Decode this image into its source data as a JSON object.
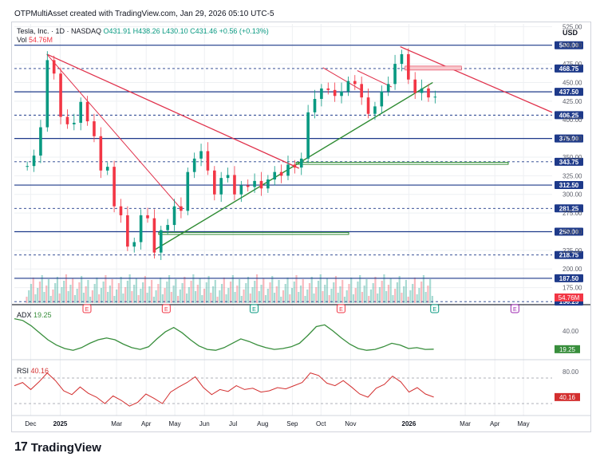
{
  "caption": "OTPMultiAsset created with TradingView.com, Jan 29, 2026 05:10 UTC-5",
  "header": {
    "symbol": "Tesla, Inc. · 1D · NASDAQ",
    "ohlc": "O431.91 H438.26 L430.10 C431.46 +0.56 (+0.13%)",
    "vol_label": "Vol",
    "vol_value": "54.76M",
    "currency": "USD"
  },
  "logo": {
    "mark": "17",
    "word": "TradingView"
  },
  "colors": {
    "up": "#089981",
    "down": "#f23645",
    "hline": "#1e3a8a",
    "trendRed": "#e0314b",
    "trendGreen": "#2e8b32",
    "adx": "#388e3c",
    "rsi": "#d32f2f",
    "grid": "#eef0f3"
  },
  "chart_data": [
    {
      "type": "candlestick",
      "title": "Tesla, Inc. · 1D · NASDAQ",
      "ylim": [
        150,
        520
      ],
      "x_ticks": [
        "Dec",
        "2025",
        "Mar",
        "Apr",
        "May",
        "Jun",
        "Jul",
        "Aug",
        "Sep",
        "Oct",
        "Nov",
        "2026",
        "Mar",
        "Apr",
        "May"
      ],
      "y_ticks": [
        525,
        500,
        475,
        450,
        425,
        400,
        375,
        350,
        325,
        300,
        275,
        250,
        225,
        200,
        175,
        150
      ],
      "price_levels": [
        500.0,
        468.75,
        437.5,
        406.25,
        375.0,
        343.75,
        312.5,
        281.25,
        250.0,
        218.75,
        187.5,
        156.25
      ],
      "last_price_label": "54.76M",
      "series": [
        {
          "name": "Price",
          "points": [
            {
              "d": "2024-11-26",
              "v": 338
            },
            {
              "d": "2024-12-03",
              "v": 352
            },
            {
              "d": "2024-12-10",
              "v": 390
            },
            {
              "d": "2024-12-17",
              "v": 480
            },
            {
              "d": "2024-12-24",
              "v": 462
            },
            {
              "d": "2024-12-31",
              "v": 404
            },
            {
              "d": "2025-01-07",
              "v": 394
            },
            {
              "d": "2025-01-14",
              "v": 396
            },
            {
              "d": "2025-01-21",
              "v": 424
            },
            {
              "d": "2025-01-28",
              "v": 398
            },
            {
              "d": "2025-02-04",
              "v": 378
            },
            {
              "d": "2025-02-11",
              "v": 332
            },
            {
              "d": "2025-02-18",
              "v": 337
            },
            {
              "d": "2025-02-25",
              "v": 284
            },
            {
              "d": "2025-03-04",
              "v": 272
            },
            {
              "d": "2025-03-11",
              "v": 230
            },
            {
              "d": "2025-03-18",
              "v": 236
            },
            {
              "d": "2025-03-25",
              "v": 272
            },
            {
              "d": "2025-04-01",
              "v": 268
            },
            {
              "d": "2025-04-08",
              "v": 222
            },
            {
              "d": "2025-04-15",
              "v": 252
            },
            {
              "d": "2025-04-22",
              "v": 259
            },
            {
              "d": "2025-04-29",
              "v": 284
            },
            {
              "d": "2025-05-06",
              "v": 278
            },
            {
              "d": "2025-05-13",
              "v": 330
            },
            {
              "d": "2025-05-20",
              "v": 348
            },
            {
              "d": "2025-05-27",
              "v": 358
            },
            {
              "d": "2025-06-03",
              "v": 332
            },
            {
              "d": "2025-06-10",
              "v": 300
            },
            {
              "d": "2025-06-17",
              "v": 322
            },
            {
              "d": "2025-06-24",
              "v": 326
            },
            {
              "d": "2025-07-01",
              "v": 300
            },
            {
              "d": "2025-07-08",
              "v": 312
            },
            {
              "d": "2025-07-15",
              "v": 310
            },
            {
              "d": "2025-07-22",
              "v": 318
            },
            {
              "d": "2025-07-29",
              "v": 308
            },
            {
              "d": "2025-08-05",
              "v": 320
            },
            {
              "d": "2025-08-12",
              "v": 330
            },
            {
              "d": "2025-08-19",
              "v": 325
            },
            {
              "d": "2025-08-26",
              "v": 340
            },
            {
              "d": "2025-09-02",
              "v": 336
            },
            {
              "d": "2025-09-09",
              "v": 348
            },
            {
              "d": "2025-09-16",
              "v": 410
            },
            {
              "d": "2025-09-23",
              "v": 428
            },
            {
              "d": "2025-09-30",
              "v": 442
            },
            {
              "d": "2025-10-07",
              "v": 440
            },
            {
              "d": "2025-10-14",
              "v": 432
            },
            {
              "d": "2025-10-21",
              "v": 438
            },
            {
              "d": "2025-10-28",
              "v": 452
            },
            {
              "d": "2025-11-04",
              "v": 448
            },
            {
              "d": "2025-11-11",
              "v": 430
            },
            {
              "d": "2025-11-18",
              "v": 408
            },
            {
              "d": "2025-11-25",
              "v": 418
            },
            {
              "d": "2025-12-02",
              "v": 438
            },
            {
              "d": "2025-12-09",
              "v": 448
            },
            {
              "d": "2025-12-16",
              "v": 475
            },
            {
              "d": "2025-12-23",
              "v": 488
            },
            {
              "d": "2025-12-30",
              "v": 454
            },
            {
              "d": "2026-01-06",
              "v": 436
            },
            {
              "d": "2026-01-13",
              "v": 442
            },
            {
              "d": "2026-01-20",
              "v": 430
            },
            {
              "d": "2026-01-27",
              "v": 431
            }
          ]
        }
      ]
    },
    {
      "type": "line",
      "title": "ADX",
      "ylim": [
        10,
        60
      ],
      "y_ticks": [
        40.0
      ],
      "value_label": "19.25",
      "series": [
        {
          "name": "ADX",
          "values": [
            54,
            52,
            46,
            38,
            30,
            24,
            20,
            18,
            21,
            26,
            30,
            32,
            30,
            25,
            21,
            19,
            22,
            31,
            39,
            44,
            38,
            30,
            23,
            19,
            18,
            21,
            26,
            31,
            28,
            24,
            21,
            19,
            20,
            22,
            26,
            35,
            45,
            47,
            40,
            32,
            25,
            20,
            18,
            19,
            22,
            26,
            24,
            20,
            21,
            19,
            19.25
          ]
        }
      ]
    },
    {
      "type": "line",
      "title": "RSI",
      "ylim": [
        15,
        90
      ],
      "y_ticks": [
        80.0
      ],
      "value_label": "40.16",
      "series": [
        {
          "name": "RSI",
          "values": [
            58,
            63,
            52,
            64,
            78,
            66,
            50,
            44,
            56,
            46,
            40,
            30,
            42,
            35,
            26,
            32,
            45,
            38,
            30,
            48,
            56,
            63,
            72,
            55,
            44,
            52,
            49,
            58,
            52,
            54,
            48,
            50,
            55,
            53,
            58,
            63,
            78,
            74,
            62,
            58,
            66,
            56,
            45,
            40,
            54,
            60,
            73,
            64,
            48,
            55,
            45,
            40.16
          ]
        }
      ]
    }
  ]
}
